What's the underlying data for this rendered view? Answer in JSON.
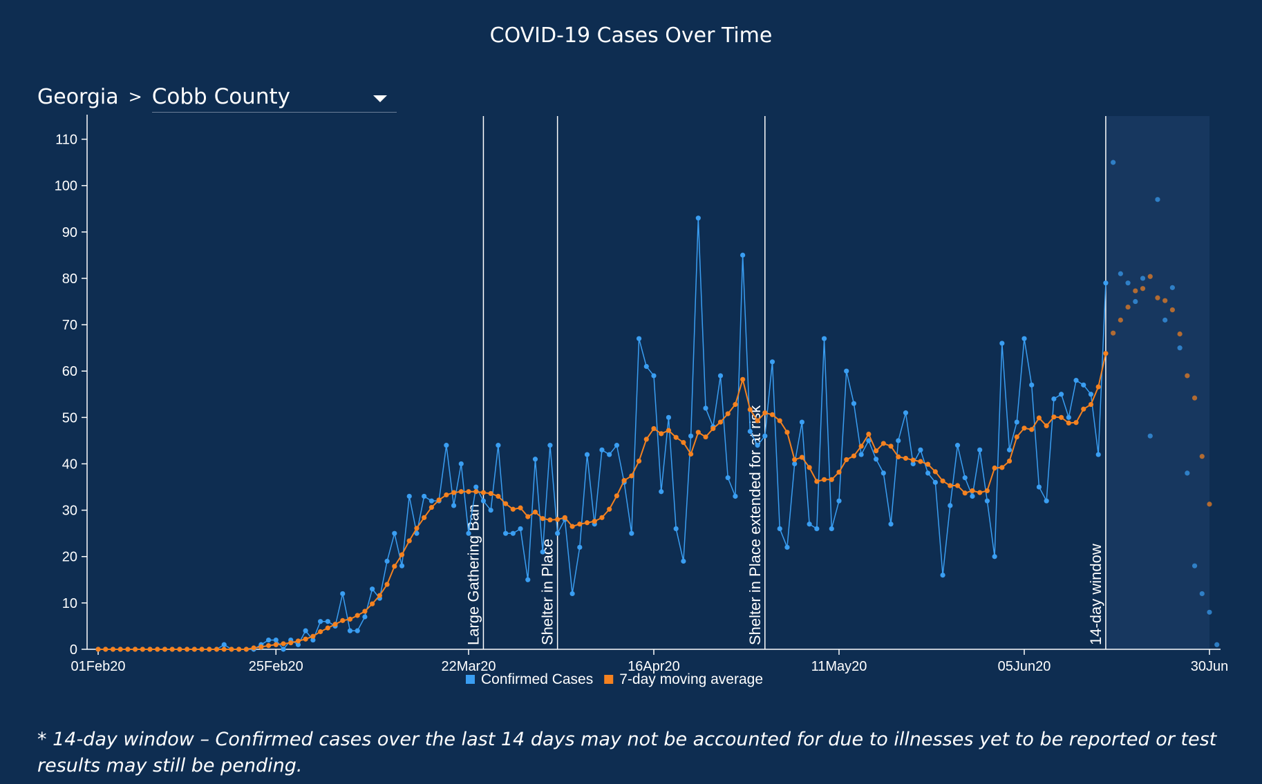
{
  "title": "COVID-19 Cases Over Time",
  "breadcrumb": {
    "state": "Georgia",
    "separator": ">",
    "county": "Cobb County"
  },
  "footnote": "* 14-day window – Confirmed cases over the last 14 days may not be accounted for due to illnesses yet to be reported or test results may still be pending.",
  "colors": {
    "background": "#0e2d51",
    "window_shade": "#17375f",
    "confirmed": "#3a9ef2",
    "average": "#f58220"
  },
  "chart_data": {
    "type": "line",
    "x_start": "2020-02-01",
    "x_end": "2020-06-30",
    "xticks": [
      {
        "date": "2020-02-01",
        "label": "01Feb20"
      },
      {
        "date": "2020-02-25",
        "label": "25Feb20"
      },
      {
        "date": "2020-03-22",
        "label": "22Mar20"
      },
      {
        "date": "2020-04-16",
        "label": "16Apr20"
      },
      {
        "date": "2020-05-11",
        "label": "11May20"
      },
      {
        "date": "2020-06-05",
        "label": "05Jun20"
      },
      {
        "date": "2020-06-30",
        "label": "30Jun"
      }
    ],
    "ylim": [
      0,
      115
    ],
    "yticks": [
      0,
      10,
      20,
      30,
      40,
      50,
      60,
      70,
      80,
      90,
      100,
      110
    ],
    "legend": {
      "placement": "bottom-center"
    },
    "annotations": [
      {
        "date": "2020-03-24",
        "label": "Large Gathering Ban"
      },
      {
        "date": "2020-04-03",
        "label": "Shelter in Place"
      },
      {
        "date": "2020-05-01",
        "label": "Shelter in Place extended for at risk"
      },
      {
        "date": "2020-06-16",
        "label": "14-day window",
        "shade_to_end": true
      }
    ],
    "series": [
      {
        "name": "Confirmed Cases",
        "values": [
          0,
          0,
          0,
          0,
          0,
          0,
          0,
          0,
          0,
          0,
          0,
          0,
          0,
          0,
          0,
          0,
          0,
          1,
          0,
          0,
          0,
          0,
          1,
          2,
          2,
          0,
          2,
          1,
          4,
          2,
          6,
          6,
          5,
          12,
          4,
          4,
          7,
          13,
          11,
          19,
          25,
          18,
          33,
          25,
          33,
          32,
          32,
          44,
          31,
          40,
          25,
          35,
          32,
          30,
          44,
          25,
          25,
          26,
          15,
          41,
          21,
          44,
          25,
          28,
          12,
          22,
          42,
          27,
          43,
          42,
          44,
          36,
          25,
          67,
          61,
          59,
          34,
          50,
          26,
          19,
          46,
          93,
          52,
          48,
          59,
          37,
          33,
          85,
          47,
          44,
          46,
          62,
          26,
          22,
          40,
          49,
          27,
          26,
          67,
          26,
          32,
          60,
          53,
          42,
          45,
          41,
          38,
          27,
          45,
          51,
          40,
          43,
          38,
          36,
          16,
          31,
          44,
          37,
          33,
          43,
          32,
          20,
          66,
          43,
          49,
          67,
          57,
          35,
          32,
          54,
          55,
          50,
          58,
          57,
          55,
          42,
          79,
          105,
          81,
          79,
          75,
          80,
          46,
          97,
          71,
          78,
          65,
          38,
          18,
          12,
          8,
          1
        ]
      },
      {
        "name": "7-day moving average",
        "values": [
          0,
          0,
          0,
          0,
          0,
          0,
          0,
          0,
          0,
          0,
          0,
          0,
          0,
          0,
          0,
          0,
          0,
          0,
          0,
          0,
          0,
          0.3,
          0.5,
          0.8,
          1,
          1.2,
          1.4,
          1.8,
          2.2,
          2.8,
          3.8,
          4.6,
          5.4,
          6.2,
          6.5,
          7.3,
          8.2,
          9.8,
          11.6,
          14,
          17.9,
          20.4,
          23.4,
          26.1,
          28.4,
          30.6,
          32.2,
          33.3,
          33.8,
          34,
          34,
          34,
          33.8,
          33.6,
          33,
          31.4,
          30.2,
          30.5,
          28.6,
          29.6,
          28.2,
          27.9,
          28,
          28.4,
          26.5,
          27,
          27.3,
          27.6,
          28.4,
          30.2,
          33.1,
          36.4,
          37.4,
          40.6,
          45.3,
          47.6,
          46.5,
          47.2,
          45.7,
          44.6,
          42.1,
          46.8,
          45.8,
          47.6,
          49,
          50.8,
          52.8,
          58.2,
          51.7,
          49.3,
          51,
          50.6,
          49.3,
          46.8,
          40.9,
          41.4,
          39.2,
          36.2,
          36.6,
          36.6,
          38.2,
          40.9,
          41.7,
          43.8,
          46.4,
          42.8,
          44.4,
          43.8,
          41.5,
          41.2,
          40.8,
          40.5,
          39.9,
          38.3,
          36.3,
          35.3,
          35.3,
          33.7,
          34.2,
          33.8,
          34.2,
          39.1,
          39.2,
          40.6,
          45.8,
          47.7,
          47.4,
          49.9,
          48.2,
          50.1,
          50,
          48.8,
          48.9,
          51.8,
          52.8,
          56.6,
          63.8,
          68.2,
          71,
          73.8,
          77.3,
          77.8,
          80.4,
          75.8,
          75.2,
          73.2,
          68,
          59,
          54.2,
          41.6,
          31.3
        ]
      }
    ]
  }
}
